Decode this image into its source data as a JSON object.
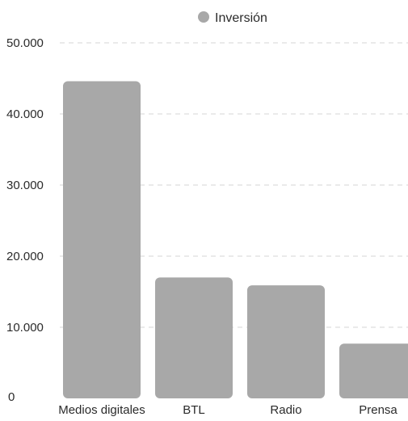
{
  "chart_data": {
    "type": "bar",
    "title": "",
    "xlabel": "",
    "ylabel": "",
    "categories": [
      "Medios digitales",
      "BTL",
      "Radio",
      "Prensa"
    ],
    "series": [
      {
        "name": "Inversión",
        "values": [
          44600,
          17000,
          15900,
          7700
        ]
      }
    ],
    "ylim": [
      0,
      50000
    ],
    "yticks": [
      0,
      10000,
      20000,
      30000,
      40000,
      50000
    ],
    "ytick_labels": [
      "0",
      "10.000",
      "20.000",
      "30.000",
      "40.000",
      "50.000"
    ],
    "grid": true,
    "legend_position": "top-center",
    "bar_color": "#a8a8a8",
    "legend_marker_color": "#a8a8a8"
  }
}
